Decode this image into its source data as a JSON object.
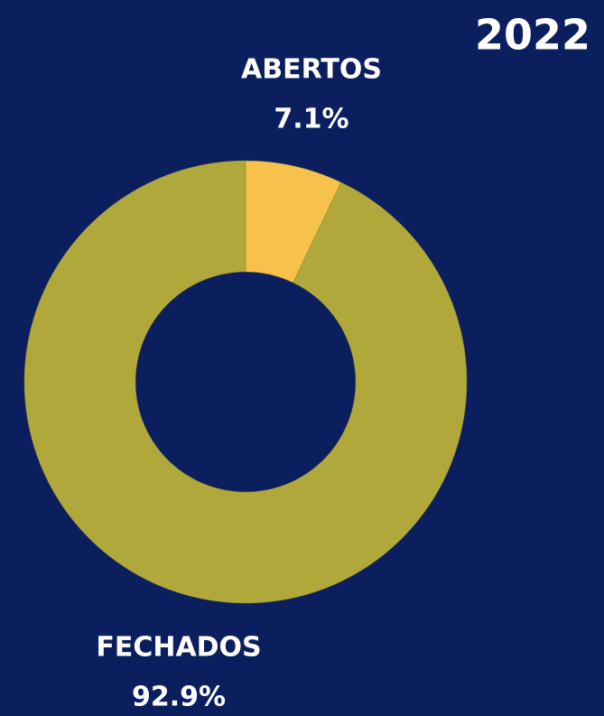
{
  "chart_data": {
    "type": "pie",
    "title": "2022",
    "categories": [
      "ABERTOS",
      "FECHADOS"
    ],
    "values": [
      7.1,
      92.9
    ],
    "value_labels": [
      "7.1%",
      "92.9%"
    ],
    "colors": [
      "#f6c24c",
      "#b1a83c"
    ]
  }
}
